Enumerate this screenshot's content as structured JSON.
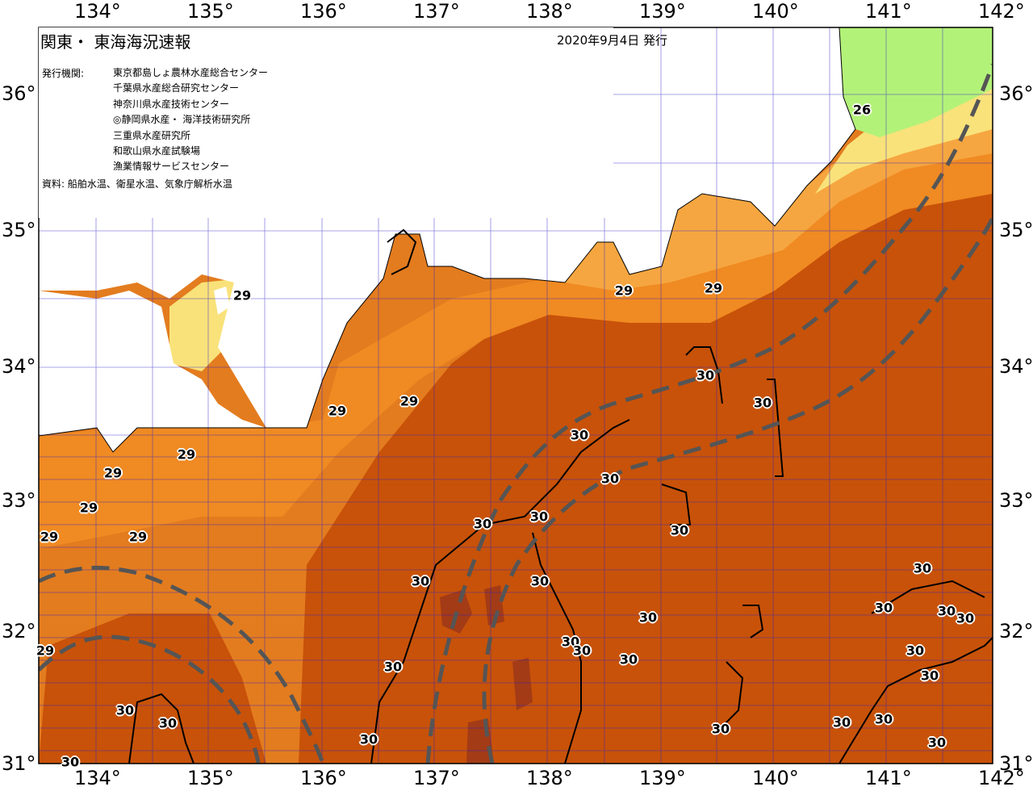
{
  "map": {
    "title": "関東・ 東海海況速報",
    "issue_date": "2020年9月4日 発行",
    "publisher_label": "発行機関:",
    "publishers": [
      "東京都島しょ農林水産総合センター",
      "千葉県水産総合研究センター",
      "神奈川県水産技術センター",
      "◎静岡県水産・ 海洋技術研究所",
      "三重県水産研究所",
      "和歌山県水産試験場",
      "漁業情報サービスセンター"
    ],
    "source": "資料: 船舶水温、衛星水温、気象庁解析水温",
    "lon_labels": [
      "134°",
      "135°",
      "136°",
      "137°",
      "138°",
      "139°",
      "140°",
      "141°",
      "142°"
    ],
    "lat_labels": [
      "36°",
      "35°",
      "34°",
      "33°",
      "32°",
      "31°"
    ],
    "contour_labels": [
      "26",
      "29",
      "30"
    ],
    "colors": {
      "land": "#ffffff",
      "sst_26": "#b3f279",
      "sst_27": "#f9e27a",
      "sst_28": "#f6a640",
      "sst_29": "#e37c1f",
      "sst_30": "#c85209",
      "sst_31": "#a33b16",
      "grid": "#2e1fc7",
      "kuroshio_axis": "#555555"
    }
  }
}
